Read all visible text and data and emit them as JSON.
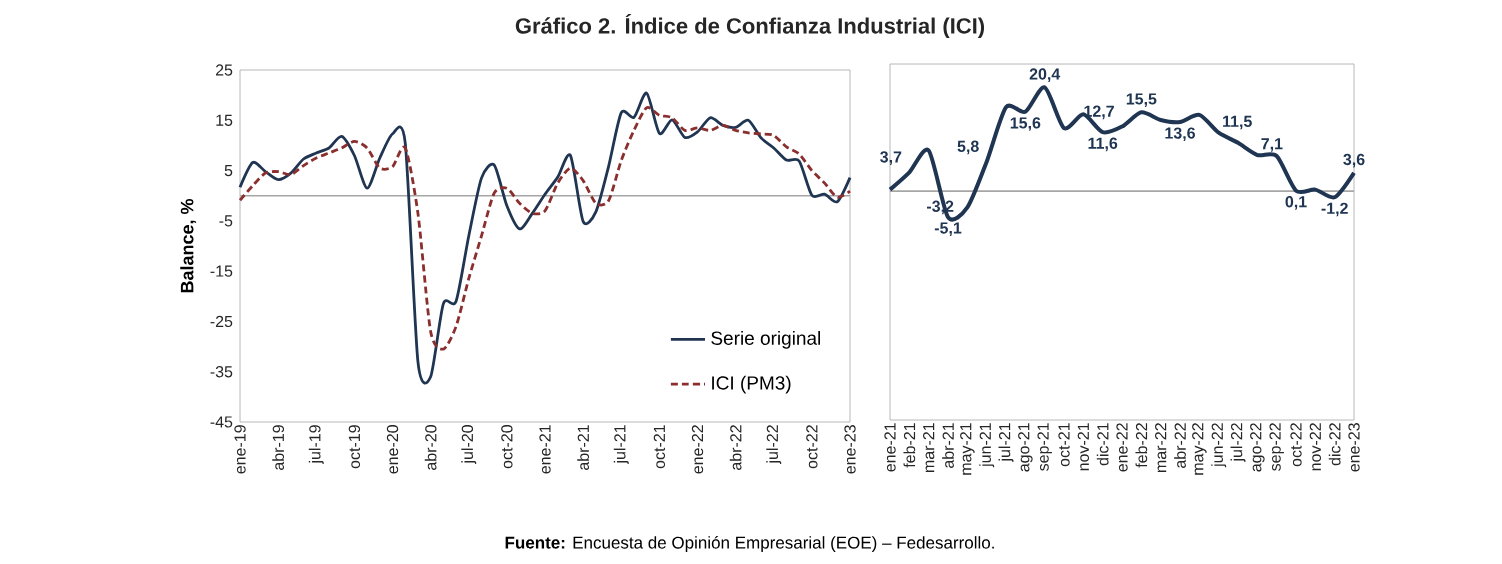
{
  "chart_data": [
    {
      "type": "line",
      "title": "Gráfico 2. Índice de Confianza Industrial (ICI)",
      "ylabel": "Balance, %",
      "categories": [
        "ene-19",
        null,
        null,
        "abr-19",
        null,
        null,
        "jul-19",
        null,
        null,
        "oct-19",
        null,
        null,
        "ene-20",
        null,
        null,
        "abr-20",
        null,
        null,
        "jul-20",
        null,
        null,
        "oct-20",
        null,
        null,
        "ene-21",
        null,
        null,
        "abr-21",
        null,
        null,
        "jul-21",
        null,
        null,
        "oct-21",
        null,
        null,
        "ene-22",
        null,
        null,
        "abr-22",
        null,
        null,
        "jul-22",
        null,
        null,
        "oct-22",
        null,
        null,
        "ene-23"
      ],
      "series": [
        {
          "name": "Serie original",
          "color": "#1f3552",
          "line_style": "solid",
          "values": [
            1.7,
            6.6,
            4.8,
            3.2,
            4.5,
            7.3,
            8.5,
            9.5,
            11.8,
            8.0,
            1.5,
            7.5,
            12.3,
            10.5,
            -33.0,
            -36.0,
            -21.5,
            -21.0,
            -8.0,
            3.5,
            6.1,
            -2.0,
            -6.6,
            -3.5,
            0.3,
            3.7,
            8.0,
            -5.1,
            -3.2,
            5.8,
            16.5,
            15.6,
            20.4,
            12.4,
            15.1,
            11.6,
            12.7,
            15.5,
            14.0,
            13.6,
            15.0,
            11.5,
            9.5,
            7.1,
            6.9,
            0.1,
            0.3,
            -1.2,
            3.6
          ]
        },
        {
          "name": "ICI (PM3)",
          "color": "#8b2e2e",
          "line_style": "dashed",
          "values": [
            -0.9,
            2.0,
            4.5,
            4.8,
            4.2,
            6.0,
            7.5,
            8.5,
            9.5,
            10.8,
            9.5,
            5.5,
            5.8,
            9.5,
            -3.5,
            -27.0,
            -30.5,
            -26.0,
            -16.5,
            -8.0,
            0.5,
            1.5,
            -1.5,
            -3.5,
            -3.0,
            2.5,
            5.5,
            3.0,
            -1.5,
            -1.0,
            7.0,
            13.0,
            17.5,
            16.0,
            15.5,
            13.0,
            13.5,
            13.0,
            14.0,
            13.0,
            12.5,
            12.3,
            12.0,
            9.7,
            8.3,
            5.0,
            2.5,
            -0.3,
            0.9
          ]
        }
      ],
      "ylim": [
        -45,
        25
      ],
      "yticks": [
        -45,
        -35,
        -25,
        -15,
        -5,
        5,
        15,
        25
      ],
      "ref_lines": [
        {
          "axis": "y",
          "value": 0,
          "color": "#a6a6a6"
        }
      ],
      "legend": "bottom right",
      "annotations": [
        "**Fuente:** Encuesta de Opinión Empresarial (EOE) – Fedesarrollo."
      ]
    },
    {
      "type": "line",
      "categories": [
        "ene-21",
        "feb-21",
        "mar-21",
        "abr-21",
        "may-21",
        "jun-21",
        "jul-21",
        "ago-21",
        "sep-21",
        "oct-21",
        "nov-21",
        "dic-21",
        "ene-22",
        "feb-22",
        "mar-22",
        "abr-22",
        "may-22",
        "jun-22",
        "jul-22",
        "ago-22",
        "sep-22",
        "oct-22",
        "nov-22",
        "dic-22",
        "ene-23"
      ],
      "series": [
        {
          "color": "#1f3552",
          "line_style": "solid",
          "values": [
            0.3,
            3.7,
            8.0,
            -5.1,
            -3.2,
            5.8,
            16.5,
            15.6,
            20.4,
            12.4,
            15.1,
            11.6,
            12.7,
            15.5,
            14.0,
            13.6,
            15.0,
            11.5,
            9.5,
            7.1,
            6.9,
            0.1,
            0.3,
            -1.2,
            3.6
          ],
          "value_labels": [
            null,
            "3,7",
            null,
            "-5,1",
            "-3,2",
            "5,8",
            null,
            "15,6",
            "20,4",
            null,
            null,
            "11,6",
            "12,7",
            "15,5",
            null,
            "13,6",
            null,
            "11,5",
            null,
            "7,1",
            null,
            "0,1",
            null,
            "-1,2",
            "3,6"
          ]
        }
      ],
      "ylim": [
        -45,
        25
      ],
      "tick_labels": "x",
      "ref_lines": [
        {
          "axis": "y",
          "value": 0,
          "color": "#a6a6a6"
        }
      ]
    }
  ]
}
